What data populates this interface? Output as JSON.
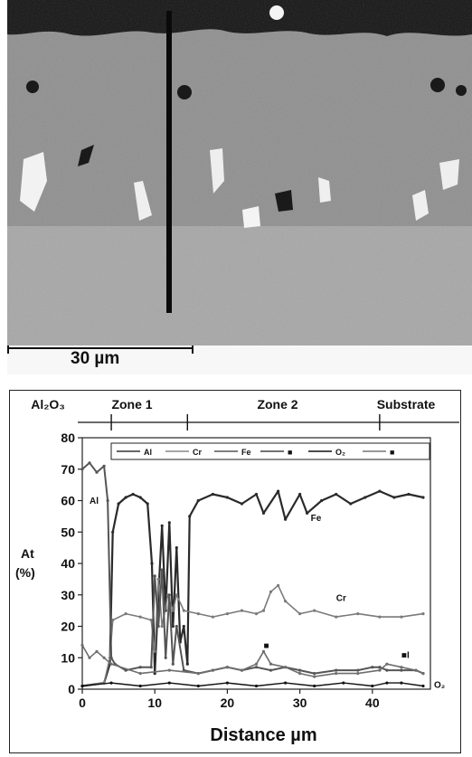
{
  "micrograph": {
    "scale_label": "30 µm"
  },
  "chart_data": {
    "type": "line",
    "xlabel": "Distance µm",
    "ylabel": [
      "At",
      "(%)"
    ],
    "xlim": [
      0,
      48
    ],
    "ylim": [
      0,
      80
    ],
    "xticks": [
      0,
      10,
      20,
      30,
      40
    ],
    "yticks": [
      0,
      10,
      20,
      30,
      40,
      50,
      60,
      70,
      80
    ],
    "zones": [
      "Al₂O₃",
      "Zone 1",
      "Zone 2",
      "Substrate"
    ],
    "zone_boundaries": [
      4,
      14.5,
      41
    ],
    "legend": [
      "Al",
      "Cr",
      "Fe",
      "■",
      "O₂",
      "■"
    ],
    "series_labels": [
      {
        "text": "Al",
        "x": 1,
        "y": 59
      },
      {
        "text": "Fe",
        "x": 31.5,
        "y": 53.5
      },
      {
        "text": "Cr",
        "x": 35,
        "y": 28
      },
      {
        "text": "■",
        "x": 25,
        "y": 13
      },
      {
        "text": "■I",
        "x": 44,
        "y": 10
      },
      {
        "text": "O₂",
        "x": 48.5,
        "y": 0.5
      }
    ],
    "series": [
      {
        "name": "Fe",
        "color": "#2a2a2a",
        "width": 2.2,
        "points": [
          [
            0,
            1
          ],
          [
            3,
            2
          ],
          [
            3.8,
            8
          ],
          [
            4.2,
            50
          ],
          [
            5,
            59
          ],
          [
            6,
            61
          ],
          [
            7,
            62
          ],
          [
            8,
            61
          ],
          [
            9,
            59
          ],
          [
            9.6,
            40
          ],
          [
            10,
            5
          ],
          [
            10.5,
            30
          ],
          [
            11,
            52
          ],
          [
            11.5,
            25
          ],
          [
            12,
            53
          ],
          [
            12.5,
            20
          ],
          [
            13,
            45
          ],
          [
            13.5,
            15
          ],
          [
            14,
            20
          ],
          [
            14.5,
            8
          ],
          [
            14.8,
            55
          ],
          [
            16,
            60
          ],
          [
            18,
            62
          ],
          [
            20,
            61
          ],
          [
            22,
            59
          ],
          [
            24,
            62
          ],
          [
            25,
            56
          ],
          [
            27,
            63
          ],
          [
            28,
            54
          ],
          [
            30,
            62
          ],
          [
            31,
            56
          ],
          [
            33,
            60
          ],
          [
            35,
            62
          ],
          [
            37,
            59
          ],
          [
            39,
            61
          ],
          [
            41,
            63
          ],
          [
            43,
            61
          ],
          [
            45,
            62
          ],
          [
            47,
            61
          ]
        ]
      },
      {
        "name": "Cr",
        "color": "#7a7a7a",
        "width": 1.6,
        "points": [
          [
            0,
            1
          ],
          [
            3,
            2
          ],
          [
            3.8,
            10
          ],
          [
            4.2,
            22
          ],
          [
            6,
            24
          ],
          [
            8,
            23
          ],
          [
            9.5,
            22
          ],
          [
            10,
            12
          ],
          [
            10.5,
            35
          ],
          [
            11,
            20
          ],
          [
            11.8,
            30
          ],
          [
            12.5,
            25
          ],
          [
            13,
            30
          ],
          [
            14,
            25
          ],
          [
            16,
            24
          ],
          [
            18,
            23
          ],
          [
            20,
            24
          ],
          [
            22,
            25
          ],
          [
            24,
            24
          ],
          [
            25,
            25
          ],
          [
            26,
            31
          ],
          [
            27,
            33
          ],
          [
            28,
            28
          ],
          [
            30,
            24
          ],
          [
            32,
            25
          ],
          [
            35,
            23
          ],
          [
            38,
            24
          ],
          [
            41,
            23
          ],
          [
            44,
            23
          ],
          [
            47,
            24
          ]
        ]
      },
      {
        "name": "Al",
        "color": "#555555",
        "width": 2.0,
        "points": [
          [
            0,
            70
          ],
          [
            1,
            72
          ],
          [
            2,
            69
          ],
          [
            3,
            71
          ],
          [
            3.5,
            60
          ],
          [
            4,
            10
          ],
          [
            4.5,
            8
          ],
          [
            6,
            6
          ],
          [
            8,
            7
          ],
          [
            9.5,
            7
          ],
          [
            10,
            36
          ],
          [
            10.5,
            20
          ],
          [
            11,
            38
          ],
          [
            11.5,
            10
          ],
          [
            12,
            30
          ],
          [
            12.5,
            8
          ],
          [
            13,
            20
          ],
          [
            14,
            6
          ],
          [
            16,
            5
          ],
          [
            18,
            6
          ],
          [
            20,
            7
          ],
          [
            22,
            6
          ],
          [
            24,
            7
          ],
          [
            26,
            6
          ],
          [
            28,
            7
          ],
          [
            30,
            6
          ],
          [
            32,
            5
          ],
          [
            35,
            6
          ],
          [
            38,
            6
          ],
          [
            40,
            7
          ],
          [
            41,
            7
          ],
          [
            42,
            6
          ],
          [
            44,
            6
          ],
          [
            46,
            6
          ],
          [
            47,
            5
          ]
        ]
      },
      {
        "name": "■",
        "color": "#6e6e6e",
        "width": 1.6,
        "points": [
          [
            0,
            14
          ],
          [
            1,
            10
          ],
          [
            2,
            12
          ],
          [
            3,
            10
          ],
          [
            4,
            8
          ],
          [
            8,
            5
          ],
          [
            12,
            6
          ],
          [
            16,
            5
          ],
          [
            20,
            7
          ],
          [
            22,
            6
          ],
          [
            24,
            8
          ],
          [
            25,
            12
          ],
          [
            26,
            8
          ],
          [
            28,
            7
          ],
          [
            30,
            5
          ],
          [
            32,
            4
          ],
          [
            35,
            5
          ],
          [
            38,
            5
          ],
          [
            41,
            6
          ],
          [
            42,
            8
          ],
          [
            44,
            7
          ],
          [
            46,
            6
          ],
          [
            47,
            5
          ]
        ]
      },
      {
        "name": "O₂",
        "color": "#111111",
        "width": 1.4,
        "points": [
          [
            0,
            1
          ],
          [
            4,
            2
          ],
          [
            8,
            1
          ],
          [
            12,
            2
          ],
          [
            16,
            1
          ],
          [
            20,
            2
          ],
          [
            24,
            1
          ],
          [
            28,
            2
          ],
          [
            32,
            1
          ],
          [
            36,
            2
          ],
          [
            40,
            1
          ],
          [
            42,
            2
          ],
          [
            44,
            2
          ],
          [
            47,
            1
          ]
        ]
      }
    ]
  }
}
